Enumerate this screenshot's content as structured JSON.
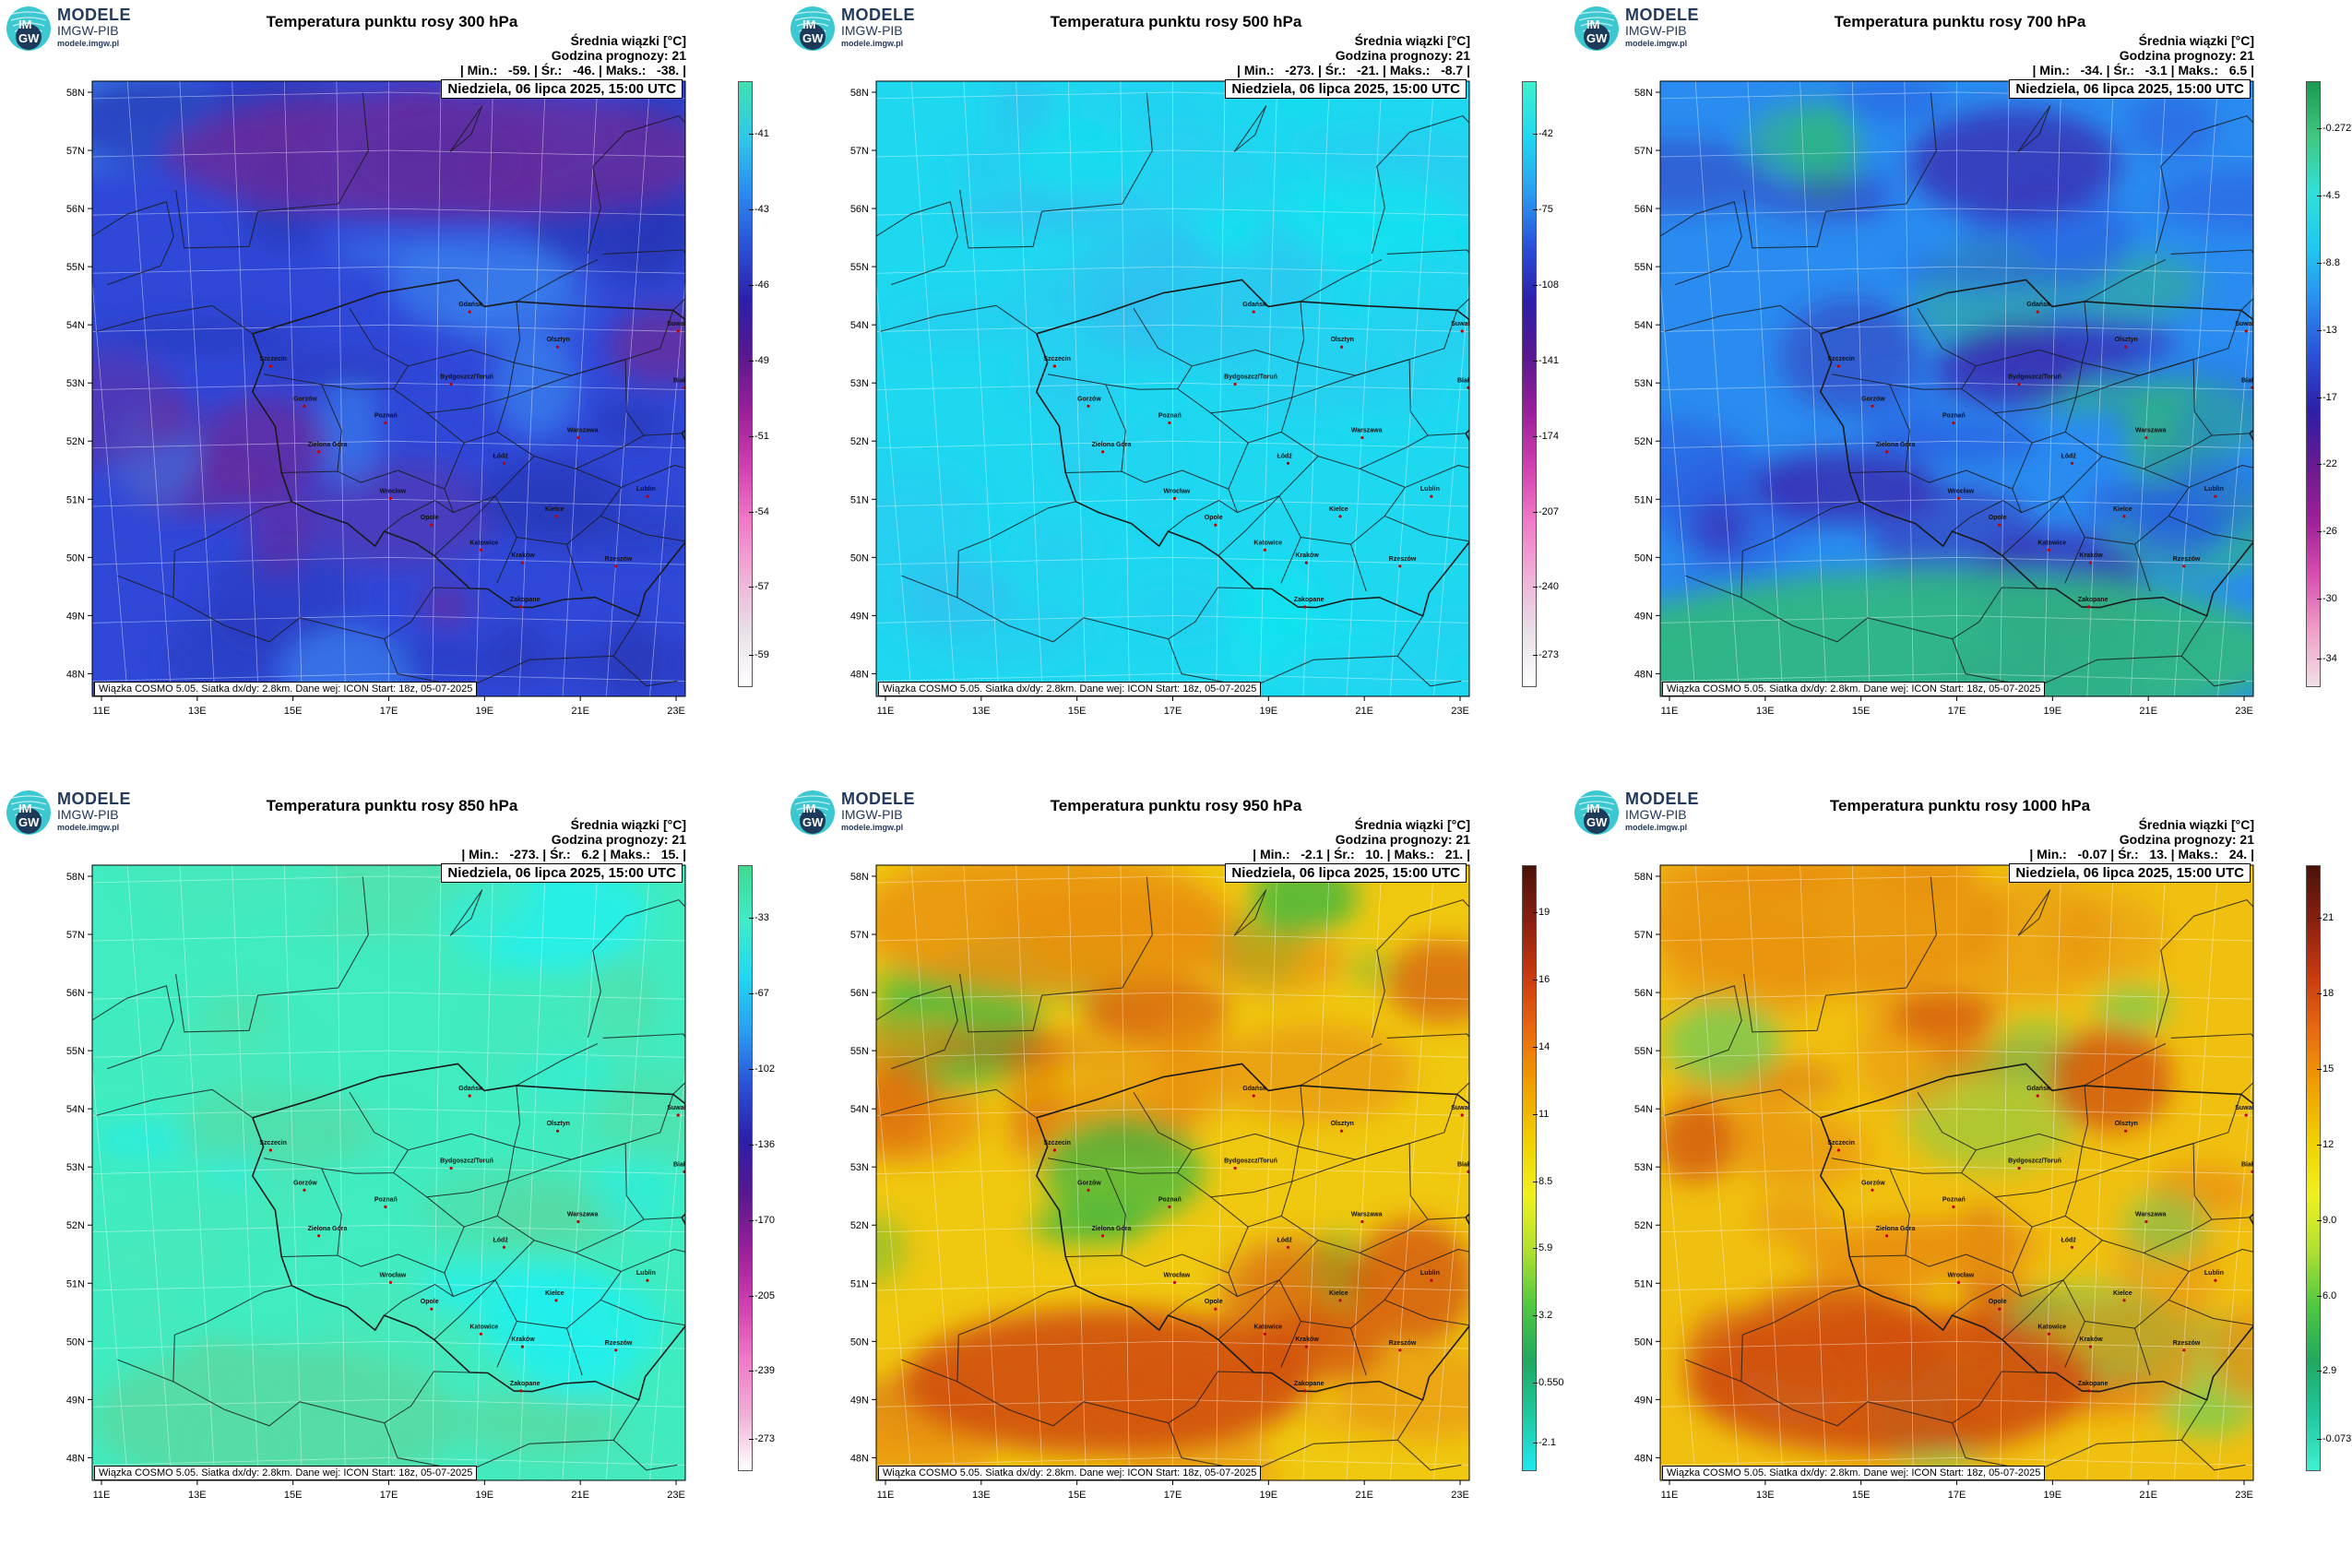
{
  "brand": {
    "line1": "MODELE",
    "line2": "IMGW-PIB",
    "line3": "modele.imgw.pl",
    "logo_text_top": "IM",
    "logo_text_bottom": "GW"
  },
  "common": {
    "unit_label": "Średnia wiązki [°C]",
    "forecast_hour": "Godzina prognozy: 21",
    "date": "Niedziela, 06 lipca 2025, 15:00 UTC",
    "footer": "Wiązka COSMO 5.05. Siatka dx/dy: 2.8km. Dane wej: ICON Start: 18z, 05-07-2025",
    "lat_labels": [
      "58N",
      "57N",
      "56N",
      "55N",
      "54N",
      "53N",
      "52N",
      "51N",
      "50N",
      "49N",
      "48N"
    ],
    "lon_labels": [
      "11E",
      "13E",
      "15E",
      "17E",
      "19E",
      "21E",
      "23E"
    ]
  },
  "cities": [
    {
      "name": "Gdańsk",
      "lon": 18.65,
      "lat": 54.35
    },
    {
      "name": "Olsztyn",
      "lon": 20.48,
      "lat": 53.78
    },
    {
      "name": "Suwałki",
      "lon": 22.93,
      "lat": 54.1
    },
    {
      "name": "Szczecin",
      "lon": 14.55,
      "lat": 53.43
    },
    {
      "name": "Białystok",
      "lon": 23.16,
      "lat": 53.13
    },
    {
      "name": "Bydgoszcz/Toruń",
      "lon": 18.3,
      "lat": 53.1
    },
    {
      "name": "Gorzów",
      "lon": 15.23,
      "lat": 52.73
    },
    {
      "name": "Poznań",
      "lon": 16.93,
      "lat": 52.41
    },
    {
      "name": "Warszawa",
      "lon": 21.01,
      "lat": 52.23
    },
    {
      "name": "Zielona Góra",
      "lon": 15.51,
      "lat": 51.94
    },
    {
      "name": "Łódź",
      "lon": 19.46,
      "lat": 51.76
    },
    {
      "name": "Lublin",
      "lon": 22.57,
      "lat": 51.25
    },
    {
      "name": "Wrocław",
      "lon": 17.04,
      "lat": 51.11
    },
    {
      "name": "Kielce",
      "lon": 20.63,
      "lat": 50.87
    },
    {
      "name": "Opole",
      "lon": 17.93,
      "lat": 50.67
    },
    {
      "name": "Rzeszów",
      "lon": 22.0,
      "lat": 50.04
    },
    {
      "name": "Katowice",
      "lon": 19.02,
      "lat": 50.26
    },
    {
      "name": "Kraków",
      "lon": 19.94,
      "lat": 50.06
    },
    {
      "name": "Zakopane",
      "lon": 19.95,
      "lat": 49.3
    }
  ],
  "panels": [
    {
      "title": "Temperatura punktu rosy 300 hPa",
      "stats": "| Min.:   -59. | Śr.:   -46. | Maks.:   -38. |",
      "colorbar_ticks": [
        "-41",
        "-43",
        "-46",
        "-49",
        "-51",
        "-54",
        "-57",
        "-59"
      ],
      "colorbar_colors": [
        "#40e0b0",
        "#30c8e8",
        "#2a8cf0",
        "#2a50d8",
        "#2c1ea8",
        "#5a1890",
        "#9a1f9a",
        "#d040b0",
        "#f07ac8",
        "#f0b0d8",
        "#e8e0e8",
        "#ffffff"
      ],
      "map_colors": {
        "base": "#3048d8",
        "alt": "#2838b8",
        "accent": "#6a2a9a",
        "accent2": "#3a88f0"
      }
    },
    {
      "title": "Temperatura punktu rosy 500 hPa",
      "stats": "| Min.:   -273. | Śr.:   -21. | Maks.:   -8.7 |",
      "colorbar_ticks": [
        "-42",
        "-75",
        "-108",
        "-141",
        "-174",
        "-207",
        "-240",
        "-273"
      ],
      "colorbar_colors": [
        "#40f0d0",
        "#20d8f0",
        "#2a9ef0",
        "#2a50d8",
        "#2c1ea8",
        "#5a1890",
        "#9a1f9a",
        "#d040b0",
        "#f07ac8",
        "#f0b0d8",
        "#e8e0e8",
        "#ffffff"
      ],
      "map_colors": {
        "base": "#1ed8f0",
        "alt": "#28ccf0",
        "accent": "#30c0f0",
        "accent2": "#10e4ee"
      }
    },
    {
      "title": "Temperatura punktu rosy 700 hPa",
      "stats": "| Min.:   -34. | Śr.:   -3.1 | Maks.:   6.5 |",
      "colorbar_ticks": [
        "-0.272",
        "-4.5",
        "-8.8",
        "-13",
        "-17",
        "-22",
        "-26",
        "-30",
        "-34"
      ],
      "colorbar_colors": [
        "#1a9a50",
        "#40c880",
        "#30e0d8",
        "#20c8f0",
        "#2a8cf0",
        "#2a50d8",
        "#2c1ea8",
        "#6a1a90",
        "#a0209a",
        "#d850b0",
        "#f0a0c8",
        "#f0e0e8"
      ],
      "map_colors": {
        "base": "#2a8cf0",
        "alt": "#2a60e0",
        "accent": "#3a2ab0",
        "accent2": "#30b880"
      }
    },
    {
      "title": "Temperatura punktu rosy 850 hPa",
      "stats": "| Min.:   -273. | Śr.:   6.2 | Maks.:   15. |",
      "colorbar_ticks": [
        "-33",
        "-67",
        "-102",
        "-136",
        "-170",
        "-205",
        "-239",
        "-273"
      ],
      "colorbar_colors": [
        "#40d890",
        "#40ecc8",
        "#20d8f0",
        "#2a9ef0",
        "#2a50d8",
        "#2c1ea8",
        "#5a1890",
        "#9a1f9a",
        "#d040b0",
        "#f07ac8",
        "#f0b0d8",
        "#ffffff"
      ],
      "map_colors": {
        "base": "#40ecc0",
        "alt": "#48e8b8",
        "accent": "#5ad8a0",
        "accent2": "#20f0f0"
      }
    },
    {
      "title": "Temperatura punktu rosy 950 hPa",
      "stats": "| Min.:   -2.1 | Śr.:   10. | Maks.:   21. |",
      "colorbar_ticks": [
        "19",
        "16",
        "14",
        "11",
        "8.5",
        "5.9",
        "3.2",
        "0.550",
        "-2.1"
      ],
      "colorbar_colors": [
        "#4a1208",
        "#8a2010",
        "#c83a10",
        "#e86a10",
        "#f0a000",
        "#f0d000",
        "#f0f020",
        "#b0e030",
        "#50c840",
        "#20a860",
        "#20c8a0",
        "#20e8f0"
      ],
      "map_colors": {
        "base": "#f0c810",
        "alt": "#e89010",
        "accent": "#d05010",
        "accent2": "#40b840"
      }
    },
    {
      "title": "Temperatura punktu rosy 1000 hPa",
      "stats": "| Min.:   -0.07 | Śr.:   13. | Maks.:   24. |",
      "colorbar_ticks": [
        "21",
        "18",
        "15",
        "12",
        "9.0",
        "6.0",
        "2.9",
        "-0.073"
      ],
      "colorbar_colors": [
        "#4a1208",
        "#8a2010",
        "#c83a10",
        "#e86a10",
        "#f0a000",
        "#f0d000",
        "#f0f020",
        "#b0e030",
        "#50c840",
        "#20a860",
        "#20c8a0",
        "#40f0d0"
      ],
      "map_colors": {
        "base": "#f0c010",
        "alt": "#e89010",
        "accent": "#d05010",
        "accent2": "#60d060"
      }
    }
  ]
}
